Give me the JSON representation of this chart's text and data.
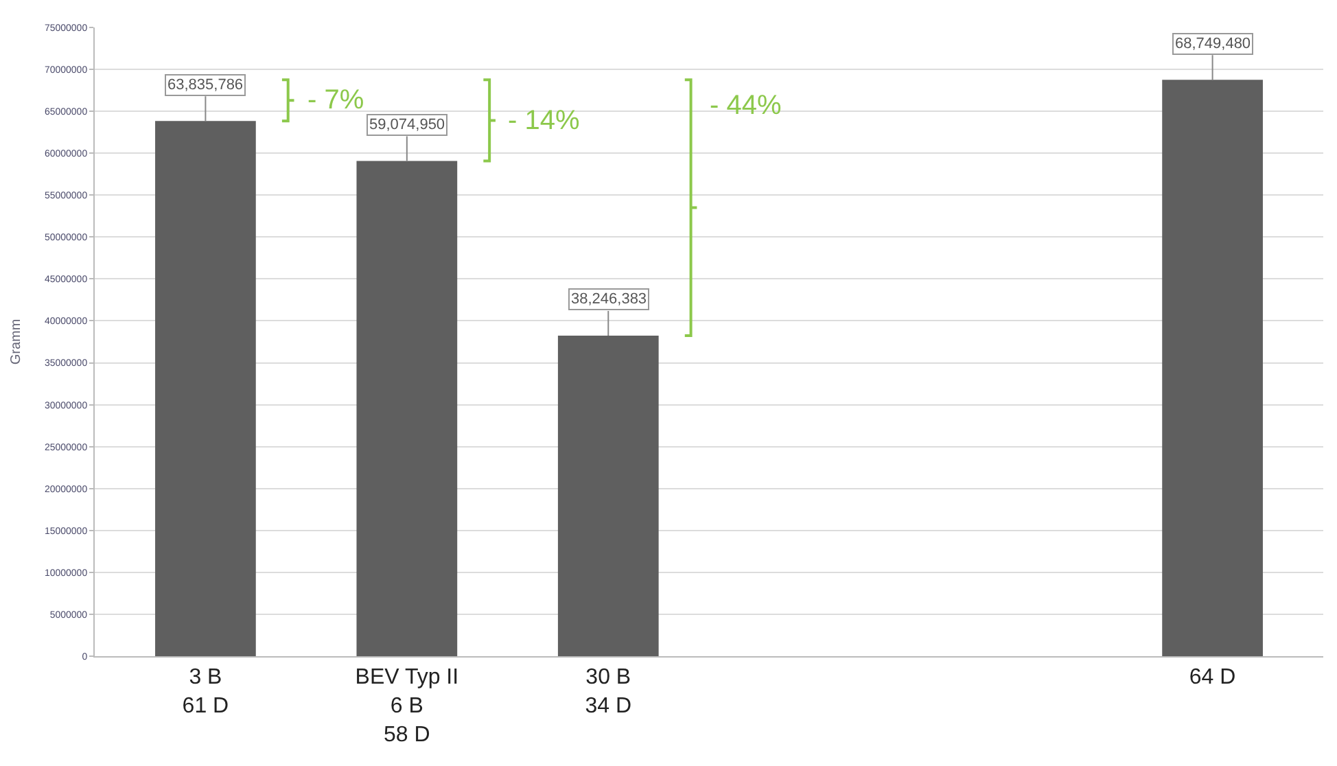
{
  "chart_data": {
    "type": "bar",
    "ylabel": "Gramm",
    "categories": [
      "3 B\n61 D",
      "BEV Typ II\n6 B\n58 D",
      "30 B\n34 D",
      null,
      null,
      "64 D"
    ],
    "values": [
      63835786,
      59074950,
      38246383,
      null,
      null,
      68749480
    ],
    "color": "#5f5f5f",
    "value_labels": [
      "63,835,786",
      "59,074,950",
      "38,246,383",
      null,
      null,
      "68,749,480"
    ],
    "annotations": [
      "- 7%",
      "- 14%",
      "- 44%"
    ],
    "ylim": [
      0,
      75000000
    ],
    "yticks": [
      0,
      5000000,
      10000000,
      15000000,
      20000000,
      25000000,
      30000000,
      35000000,
      40000000,
      45000000,
      50000000,
      55000000,
      60000000,
      65000000,
      70000000,
      75000000
    ],
    "grid": "y",
    "legend": false
  }
}
